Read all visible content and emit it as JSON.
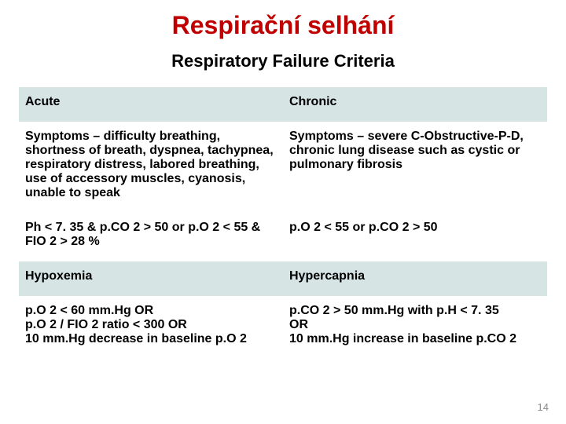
{
  "title": {
    "text": "Respirační selhání",
    "color": "#c00000",
    "fontsize": 32
  },
  "subtitle": {
    "text": "Respiratory Failure Criteria",
    "color": "#000000",
    "fontsize": 22
  },
  "table": {
    "header_bg": "#d6e5e3",
    "body_bg": "#ffffff",
    "cell_fontsize": 16,
    "rows": [
      {
        "type": "hdr",
        "left": "Acute",
        "right": "Chronic"
      },
      {
        "type": "body",
        "left": "Symptoms – difficulty breathing, shortness of breath, dyspnea, tachypnea, respiratory distress, labored breathing, use of accessory muscles, cyanosis, unable to speak",
        "right": "Symptoms – severe C-Obstructive-P-D, chronic lung disease such as cystic or pulmonary fibrosis"
      },
      {
        "type": "body",
        "left": "Ph < 7. 35 & p.CO 2 > 50  or p.O 2 < 55 & FIO 2 > 28 %",
        "right": "p.O 2 < 55 or p.CO 2 > 50"
      },
      {
        "type": "hdr",
        "left": "Hypoxemia",
        "right": "Hypercapnia"
      },
      {
        "type": "body",
        "left": "p.O 2 < 60 mm.Hg                   OR\np.O 2 / FIO 2 ratio < 300       OR\n10 mm.Hg decrease in baseline p.O 2",
        "right": "p.CO 2 > 50 mm.Hg with p.H < 7. 35\nOR\n10 mm.Hg increase in baseline p.CO 2"
      }
    ]
  },
  "pagenum": "14"
}
